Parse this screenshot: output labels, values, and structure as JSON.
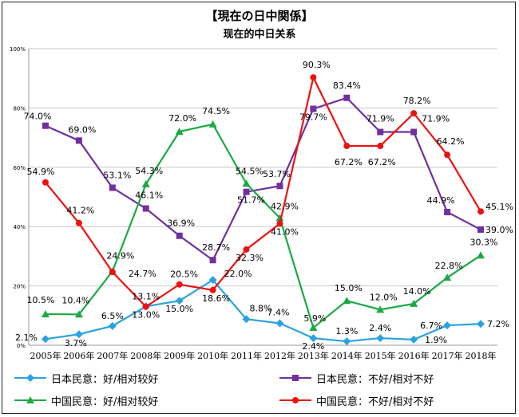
{
  "chart_data": {
    "type": "line",
    "title": "【現在の日中関係】",
    "subtitle": "现在的中日关系",
    "categories": [
      "2005年",
      "2006年",
      "2007年",
      "2008年",
      "2009年",
      "2010年",
      "2011年",
      "2012年",
      "2013年",
      "2014年",
      "2015年",
      "2016年",
      "2017年",
      "2018年"
    ],
    "ylim": [
      0,
      100
    ],
    "yticks": [
      "0%",
      "20%",
      "40%",
      "60%",
      "80%",
      "100%"
    ],
    "grid": true,
    "legend_position": "bottom",
    "series": [
      {
        "name": "日本民意：好/相对较好",
        "color": "#29a3e0",
        "marker": "diamond",
        "values": [
          2.1,
          3.7,
          6.5,
          13.1,
          15.0,
          22.0,
          8.8,
          7.4,
          2.4,
          1.3,
          2.4,
          1.9,
          6.7,
          7.2
        ],
        "labels": [
          "2.1%",
          "3.7%",
          "6.5%",
          "13.1%",
          "15.0%",
          "22.0%",
          "8.8%",
          "7.4%",
          "2.4%",
          "1.3%",
          "2.4%",
          "1.9%",
          "6.7%",
          "7.2%"
        ]
      },
      {
        "name": "日本民意：不好/相对不好",
        "color": "#7030a0",
        "marker": "square",
        "values": [
          74.0,
          69.0,
          53.1,
          46.1,
          36.9,
          28.7,
          51.7,
          53.7,
          79.7,
          83.4,
          71.9,
          71.9,
          44.9,
          39.0
        ],
        "labels": [
          "74.0%",
          "69.0%",
          "53.1%",
          "46.1%",
          "36.9%",
          "28.7%",
          "51.7%",
          "53.7%",
          "79.7%",
          "83.4%",
          "71.9%",
          "71.9%",
          "44.9%",
          "39.0%"
        ]
      },
      {
        "name": "中国民意：好/相对较好",
        "color": "#1aaa44",
        "marker": "triangle",
        "values": [
          10.5,
          10.4,
          24.9,
          54.3,
          72.0,
          74.5,
          54.5,
          42.9,
          5.9,
          15.0,
          12.0,
          14.0,
          22.8,
          30.3
        ],
        "labels": [
          "10.5%",
          "10.4%",
          "24.9%",
          "54.3%",
          "72.0%",
          "74.5%",
          "54.5%",
          "42.9%",
          "5.9%",
          "15.0%",
          "12.0%",
          "14.0%",
          "22.8%",
          "30.3%"
        ]
      },
      {
        "name": "中国民意：不好/相对不好",
        "color": "#ee1111",
        "marker": "circle",
        "values": [
          54.9,
          41.2,
          24.7,
          13.0,
          20.5,
          18.6,
          32.3,
          41.0,
          90.3,
          67.2,
          67.2,
          78.2,
          64.2,
          45.1
        ],
        "labels": [
          "54.9%",
          "41.2%",
          "24.7%",
          "13.0%",
          "20.5%",
          "18.6%",
          "32.3%",
          "41.0%",
          "90.3%",
          "67.2%",
          "67.2%",
          "78.2%",
          "64.2%",
          "45.1%"
        ]
      }
    ]
  }
}
